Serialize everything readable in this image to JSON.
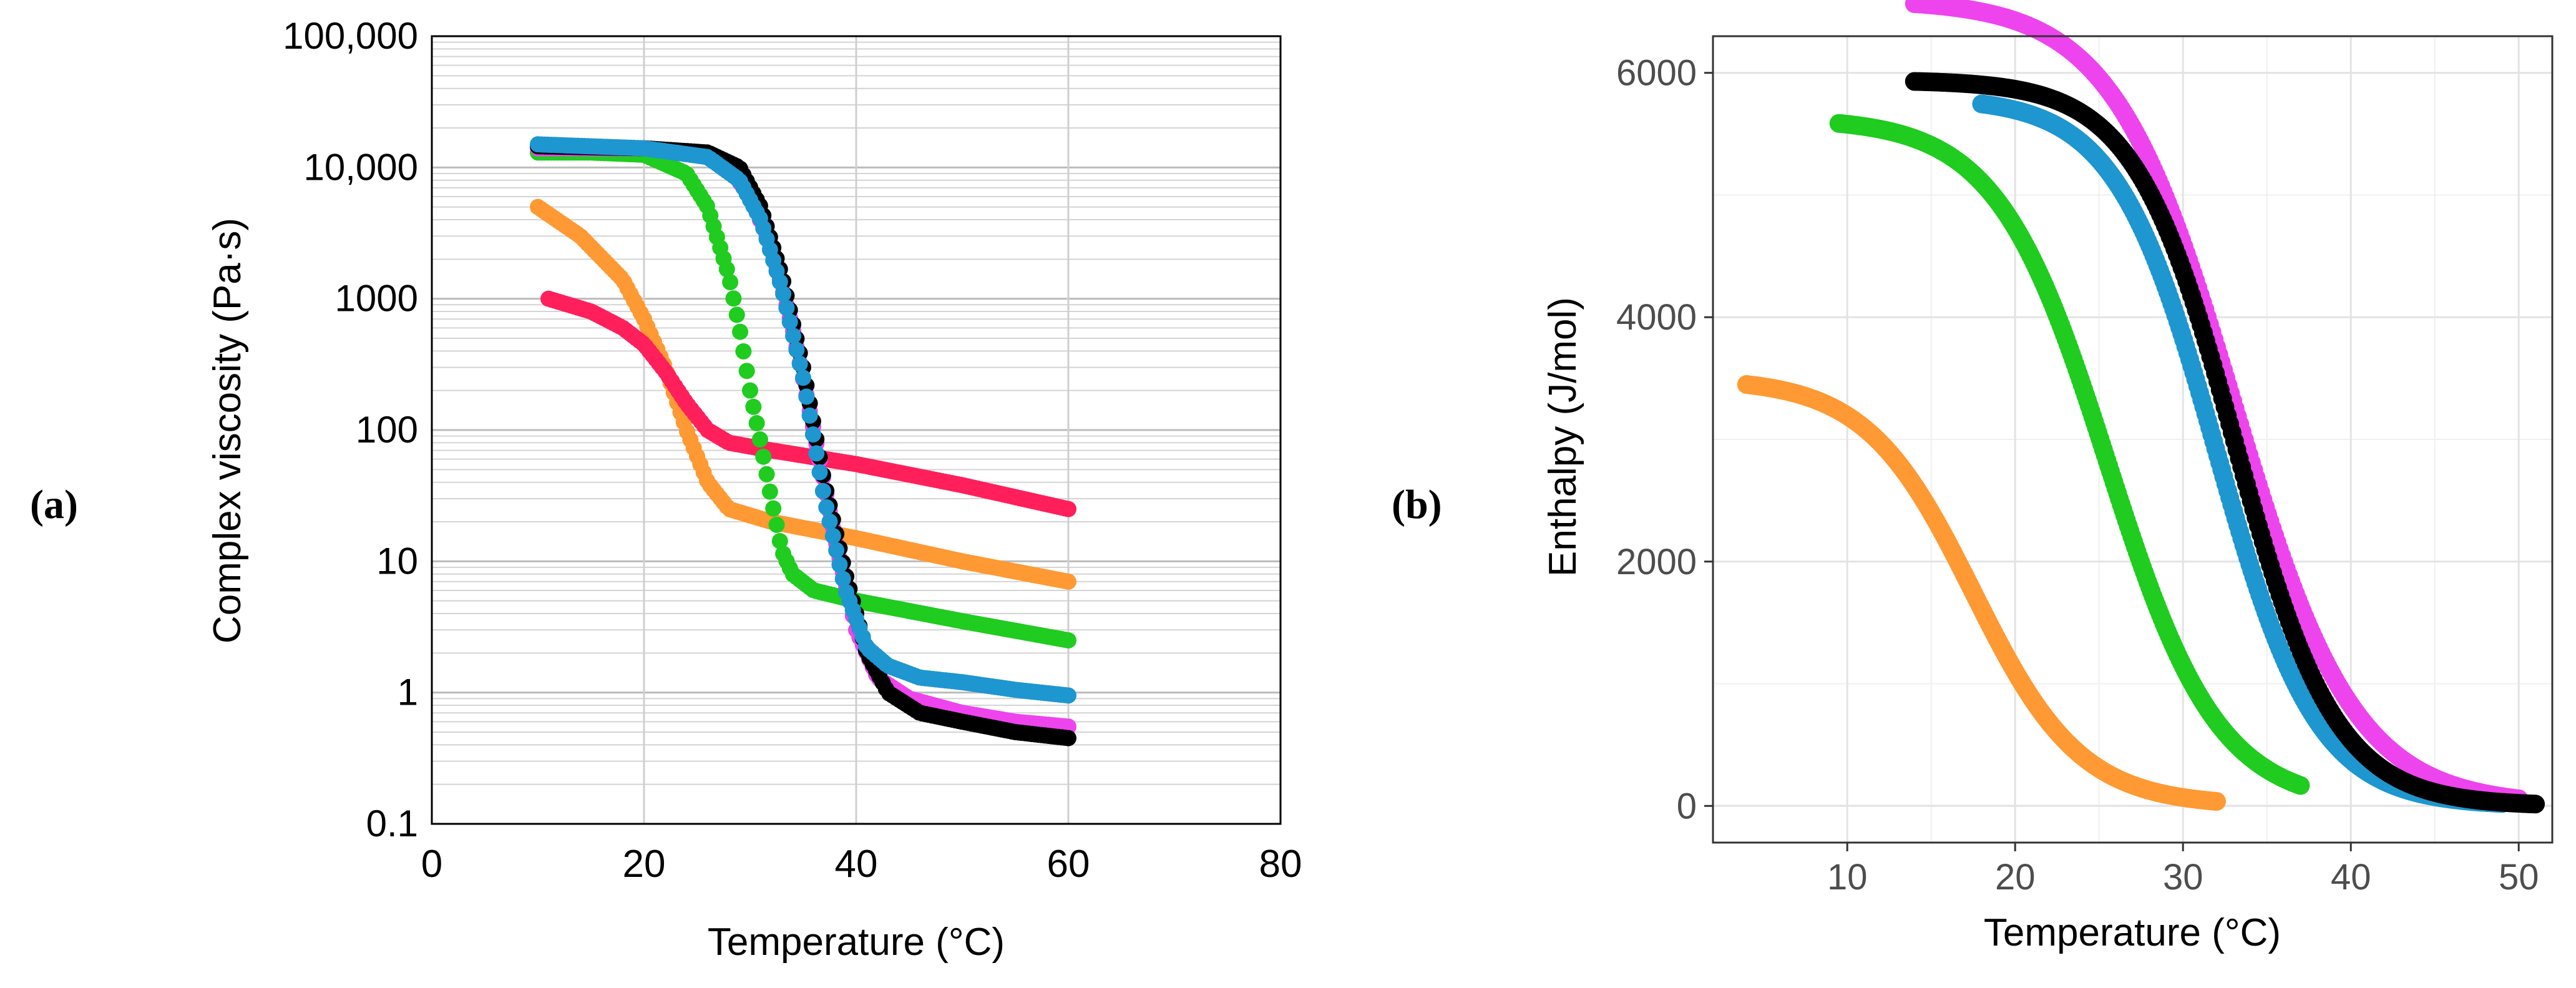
{
  "chart_data": [
    {
      "type": "scatter",
      "panel_label": "(a)",
      "xlabel": "Temperature (°C)",
      "ylabel": "Complex viscosity (Pa·s)",
      "xlim": [
        0,
        80
      ],
      "ylim": [
        0.1,
        100000
      ],
      "yscale": "log",
      "grid": true,
      "x_ticks": [
        {
          "value": 0,
          "label": "0"
        },
        {
          "value": 20,
          "label": "20"
        },
        {
          "value": 40,
          "label": "40"
        },
        {
          "value": 60,
          "label": "60"
        },
        {
          "value": 80,
          "label": "80"
        }
      ],
      "y_ticks": [
        {
          "value": 0.1,
          "label": "0.1"
        },
        {
          "value": 1,
          "label": "1"
        },
        {
          "value": 10,
          "label": "10"
        },
        {
          "value": 100,
          "label": "100"
        },
        {
          "value": 1000,
          "label": "1000"
        },
        {
          "value": 10000,
          "label": "10,000"
        },
        {
          "value": 100000,
          "label": "100,000"
        }
      ],
      "series": [
        {
          "name": "orange",
          "color": "#FF9933",
          "x": [
            10,
            14,
            18,
            20,
            22,
            24,
            26,
            28,
            32,
            40,
            50,
            60
          ],
          "y": [
            5000,
            3000,
            1400,
            700,
            300,
            100,
            40,
            25,
            20,
            15,
            10,
            7
          ]
        },
        {
          "name": "red",
          "color": "#FF1F5B",
          "x": [
            11,
            15,
            18,
            20,
            22,
            24,
            26,
            28,
            32,
            40,
            50,
            60
          ],
          "y": [
            1000,
            800,
            600,
            450,
            280,
            160,
            100,
            80,
            70,
            55,
            38,
            25
          ]
        },
        {
          "name": "green",
          "color": "#1FCC1F",
          "x": [
            10,
            15,
            20,
            24,
            26,
            28,
            29,
            30,
            31,
            32,
            33,
            34,
            36,
            40,
            50,
            60
          ],
          "y": [
            13000,
            13000,
            12500,
            9000,
            5000,
            1500,
            600,
            200,
            80,
            30,
            12,
            8,
            6,
            5,
            3.5,
            2.5
          ]
        },
        {
          "name": "magenta",
          "color": "#EE44EE",
          "x": [
            10,
            20,
            25,
            28,
            30,
            32,
            34,
            36,
            38,
            40,
            42,
            45,
            50,
            55,
            60
          ],
          "y": [
            14000,
            14000,
            13000,
            10000,
            6000,
            2500,
            600,
            100,
            15,
            3,
            1.3,
            0.9,
            0.7,
            0.6,
            0.55
          ]
        },
        {
          "name": "black",
          "color": "#000000",
          "x": [
            10,
            20,
            26,
            29,
            31,
            33,
            35,
            37,
            39,
            41,
            43,
            46,
            50,
            55,
            60
          ],
          "y": [
            14500,
            14000,
            13000,
            10000,
            5000,
            1500,
            300,
            40,
            8,
            2,
            1,
            0.7,
            0.6,
            0.5,
            0.45
          ]
        },
        {
          "name": "blue",
          "color": "#1E96D0",
          "x": [
            10,
            20,
            26,
            29,
            31,
            33,
            35,
            37,
            39,
            41,
            43,
            46,
            50,
            55,
            60
          ],
          "y": [
            15000,
            14000,
            12000,
            8000,
            4000,
            1200,
            250,
            30,
            6,
            2.2,
            1.6,
            1.3,
            1.2,
            1.05,
            0.95
          ]
        }
      ]
    },
    {
      "type": "scatter",
      "panel_label": "(b)",
      "xlabel": "Temperature (°C)",
      "ylabel": "Enthalpy (J/mol)",
      "xlim": [
        2,
        52
      ],
      "ylim": [
        -300,
        6300
      ],
      "grid": true,
      "x_ticks": [
        {
          "value": 10,
          "label": "10"
        },
        {
          "value": 20,
          "label": "20"
        },
        {
          "value": 30,
          "label": "30"
        },
        {
          "value": 40,
          "label": "40"
        },
        {
          "value": 50,
          "label": "50"
        }
      ],
      "y_ticks": [
        {
          "value": 0,
          "label": "0"
        },
        {
          "value": 2000,
          "label": "2000"
        },
        {
          "value": 4000,
          "label": "4000"
        },
        {
          "value": 6000,
          "label": "6000"
        }
      ],
      "series": [
        {
          "name": "orange",
          "color": "#FF9933",
          "x_range": [
            4,
            32
          ],
          "y_max": 3500,
          "midpoint": 17.5,
          "width": 3.2
        },
        {
          "name": "green",
          "color": "#1FCC1F",
          "x_range": [
            9.5,
            37
          ],
          "y_max": 5630,
          "midpoint": 25.5,
          "width": 3.3
        },
        {
          "name": "blue",
          "color": "#1E96D0",
          "x_range": [
            18,
            49
          ],
          "y_max": 5800,
          "midpoint": 32.0,
          "width": 3.0
        },
        {
          "name": "magenta",
          "color": "#EE44EE",
          "x_range": [
            14,
            50
          ],
          "y_max": 6600,
          "midpoint": 33.0,
          "width": 3.6
        },
        {
          "name": "black",
          "color": "#000000",
          "x_range": [
            14,
            51
          ],
          "y_max": 5940,
          "midpoint": 33.1,
          "width": 3.0
        }
      ]
    }
  ]
}
